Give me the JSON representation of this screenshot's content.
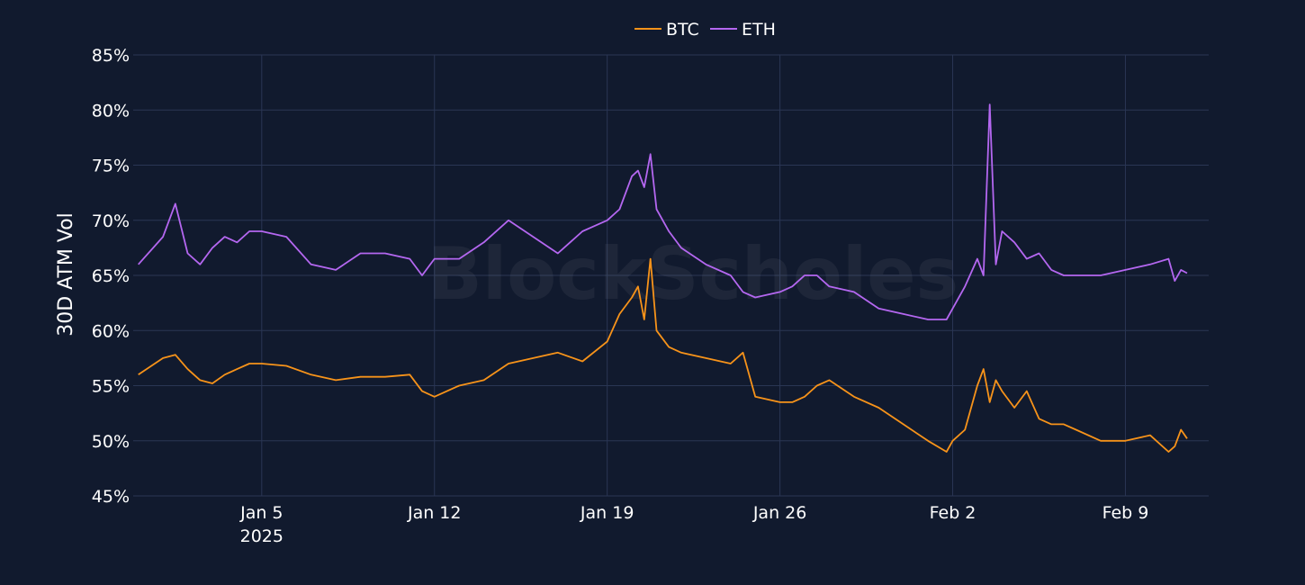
{
  "chart_data": {
    "type": "line",
    "ylabel": "30D ATM Vol",
    "xlabel": "",
    "ylim": [
      45,
      85
    ],
    "xlim": [
      "2024-12-30T19:00",
      "2025-02-12T09:00"
    ],
    "y_ticks": [
      45,
      50,
      55,
      60,
      65,
      70,
      75,
      80,
      85
    ],
    "y_tick_labels": [
      "45%",
      "50%",
      "55%",
      "60%",
      "65%",
      "70%",
      "75%",
      "80%",
      "85%"
    ],
    "x_ticks": [
      "2025-01-05",
      "2025-01-12",
      "2025-01-19",
      "2025-01-26",
      "2025-02-02",
      "2025-02-09"
    ],
    "x_tick_labels": [
      "Jan 5",
      "Jan 12",
      "Jan 19",
      "Jan 26",
      "Feb 2",
      "Feb 9"
    ],
    "x_tick_sublabel": "2025",
    "grid": true,
    "legend_position": "top-center",
    "watermark": "BlockScholes",
    "colors": {
      "background": "#111a2e",
      "grid": "#2a3654",
      "BTC": "#f7931a",
      "ETH": "#b467f0"
    },
    "series": [
      {
        "name": "BTC",
        "x": [
          "2024-12-31T00:00",
          "2025-01-01T00:00",
          "2025-01-01T12:00",
          "2025-01-02T00:00",
          "2025-01-02T12:00",
          "2025-01-03T00:00",
          "2025-01-03T12:00",
          "2025-01-04T00:00",
          "2025-01-04T12:00",
          "2025-01-05T00:00",
          "2025-01-06T00:00",
          "2025-01-07T00:00",
          "2025-01-08T00:00",
          "2025-01-09T00:00",
          "2025-01-10T00:00",
          "2025-01-11T00:00",
          "2025-01-11T12:00",
          "2025-01-12T00:00",
          "2025-01-13T00:00",
          "2025-01-14T00:00",
          "2025-01-15T00:00",
          "2025-01-16T00:00",
          "2025-01-17T00:00",
          "2025-01-18T00:00",
          "2025-01-19T00:00",
          "2025-01-19T12:00",
          "2025-01-20T00:00",
          "2025-01-20T06:00",
          "2025-01-20T12:00",
          "2025-01-20T18:00",
          "2025-01-21T00:00",
          "2025-01-21T12:00",
          "2025-01-22T00:00",
          "2025-01-23T00:00",
          "2025-01-24T00:00",
          "2025-01-24T12:00",
          "2025-01-25T00:00",
          "2025-01-26T00:00",
          "2025-01-26T12:00",
          "2025-01-27T00:00",
          "2025-01-27T12:00",
          "2025-01-28T00:00",
          "2025-01-29T00:00",
          "2025-01-30T00:00",
          "2025-01-31T00:00",
          "2025-02-01T00:00",
          "2025-02-01T18:00",
          "2025-02-02T00:00",
          "2025-02-02T12:00",
          "2025-02-03T00:00",
          "2025-02-03T06:00",
          "2025-02-03T12:00",
          "2025-02-03T18:00",
          "2025-02-04T00:00",
          "2025-02-04T12:00",
          "2025-02-05T00:00",
          "2025-02-05T12:00",
          "2025-02-06T00:00",
          "2025-02-06T12:00",
          "2025-02-07T00:00",
          "2025-02-08T00:00",
          "2025-02-09T00:00",
          "2025-02-10T00:00",
          "2025-02-10T18:00",
          "2025-02-11T00:00",
          "2025-02-11T06:00",
          "2025-02-11T12:00"
        ],
        "values": [
          56.0,
          57.5,
          57.8,
          56.5,
          55.5,
          55.2,
          56.0,
          56.5,
          57.0,
          57.0,
          56.8,
          56.0,
          55.5,
          55.8,
          55.8,
          56.0,
          54.5,
          54.0,
          55.0,
          55.5,
          57.0,
          57.5,
          58.0,
          57.2,
          59.0,
          61.5,
          63.0,
          64.0,
          61.0,
          66.5,
          60.0,
          58.5,
          58.0,
          57.5,
          57.0,
          58.0,
          54.0,
          53.5,
          53.5,
          54.0,
          55.0,
          55.5,
          54.0,
          53.0,
          51.5,
          50.0,
          49.0,
          50.0,
          51.0,
          55.0,
          56.5,
          53.5,
          55.5,
          54.5,
          53.0,
          54.5,
          52.0,
          51.5,
          51.5,
          51.0,
          50.0,
          50.0,
          50.5,
          49.0,
          49.5,
          51.0,
          50.2
        ]
      },
      {
        "name": "ETH",
        "x": [
          "2024-12-31T00:00",
          "2025-01-01T00:00",
          "2025-01-01T12:00",
          "2025-01-02T00:00",
          "2025-01-02T12:00",
          "2025-01-03T00:00",
          "2025-01-03T12:00",
          "2025-01-04T00:00",
          "2025-01-04T12:00",
          "2025-01-05T00:00",
          "2025-01-06T00:00",
          "2025-01-07T00:00",
          "2025-01-08T00:00",
          "2025-01-09T00:00",
          "2025-01-10T00:00",
          "2025-01-11T00:00",
          "2025-01-11T12:00",
          "2025-01-12T00:00",
          "2025-01-13T00:00",
          "2025-01-14T00:00",
          "2025-01-15T00:00",
          "2025-01-16T00:00",
          "2025-01-17T00:00",
          "2025-01-18T00:00",
          "2025-01-19T00:00",
          "2025-01-19T12:00",
          "2025-01-20T00:00",
          "2025-01-20T06:00",
          "2025-01-20T12:00",
          "2025-01-20T18:00",
          "2025-01-21T00:00",
          "2025-01-21T12:00",
          "2025-01-22T00:00",
          "2025-01-23T00:00",
          "2025-01-24T00:00",
          "2025-01-24T12:00",
          "2025-01-25T00:00",
          "2025-01-26T00:00",
          "2025-01-26T12:00",
          "2025-01-27T00:00",
          "2025-01-27T12:00",
          "2025-01-28T00:00",
          "2025-01-29T00:00",
          "2025-01-30T00:00",
          "2025-01-31T00:00",
          "2025-02-01T00:00",
          "2025-02-01T18:00",
          "2025-02-02T00:00",
          "2025-02-02T12:00",
          "2025-02-03T00:00",
          "2025-02-03T06:00",
          "2025-02-03T12:00",
          "2025-02-03T18:00",
          "2025-02-04T00:00",
          "2025-02-04T12:00",
          "2025-02-05T00:00",
          "2025-02-05T12:00",
          "2025-02-06T00:00",
          "2025-02-06T12:00",
          "2025-02-07T00:00",
          "2025-02-08T00:00",
          "2025-02-09T00:00",
          "2025-02-10T00:00",
          "2025-02-10T18:00",
          "2025-02-11T00:00",
          "2025-02-11T06:00",
          "2025-02-11T12:00"
        ],
        "values": [
          66.0,
          68.5,
          71.5,
          67.0,
          66.0,
          67.5,
          68.5,
          68.0,
          69.0,
          69.0,
          68.5,
          66.0,
          65.5,
          67.0,
          67.0,
          66.5,
          65.0,
          66.5,
          66.5,
          68.0,
          70.0,
          68.5,
          67.0,
          69.0,
          70.0,
          71.0,
          74.0,
          74.5,
          73.0,
          76.0,
          71.0,
          69.0,
          67.5,
          66.0,
          65.0,
          63.5,
          63.0,
          63.5,
          64.0,
          65.0,
          65.0,
          64.0,
          63.5,
          62.0,
          61.5,
          61.0,
          61.0,
          62.0,
          64.0,
          66.5,
          65.0,
          80.5,
          66.0,
          69.0,
          68.0,
          66.5,
          67.0,
          65.5,
          65.0,
          65.0,
          65.0,
          65.5,
          66.0,
          66.5,
          64.5,
          65.5,
          65.2
        ]
      }
    ]
  }
}
